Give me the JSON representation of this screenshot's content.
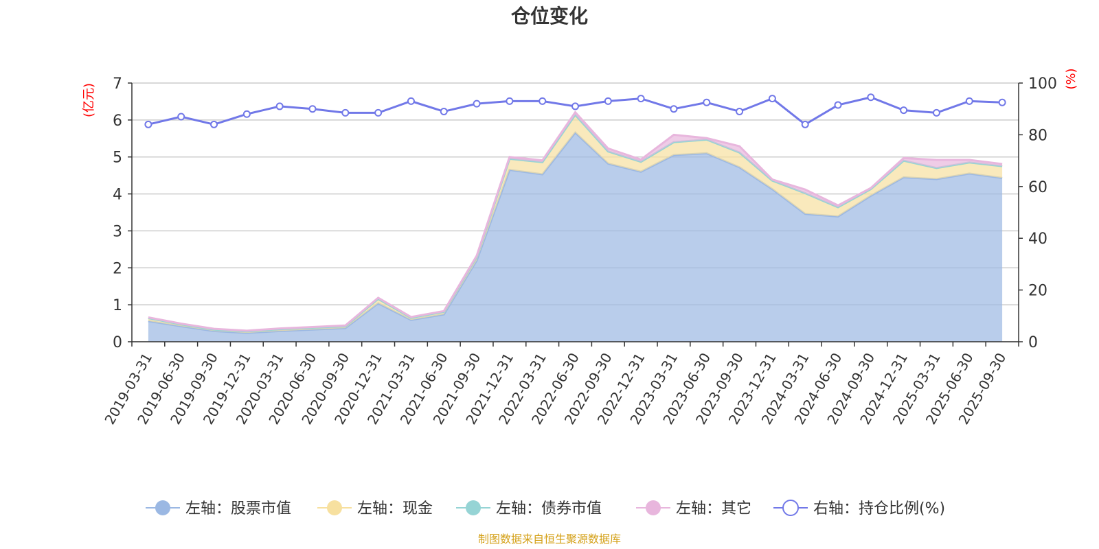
{
  "chart_data": {
    "type": "area",
    "title": "仓位变化",
    "y_left_label": "(亿元)",
    "y_right_label": "(%)",
    "y_left_range": [
      0,
      7
    ],
    "y_right_range": [
      0,
      100
    ],
    "y_left_ticks": [
      0,
      1,
      2,
      3,
      4,
      5,
      6,
      7
    ],
    "y_right_ticks": [
      0,
      20,
      40,
      60,
      80,
      100
    ],
    "categories": [
      "2019-03-31",
      "2019-06-30",
      "2019-09-30",
      "2019-12-31",
      "2020-03-31",
      "2020-06-30",
      "2020-09-30",
      "2020-12-31",
      "2021-03-31",
      "2021-06-30",
      "2021-09-30",
      "2021-12-31",
      "2022-03-31",
      "2022-06-30",
      "2022-09-30",
      "2022-12-31",
      "2023-03-31",
      "2023-06-30",
      "2023-09-30",
      "2023-12-31",
      "2024-03-31",
      "2024-06-30",
      "2024-09-30",
      "2024-12-31",
      "2025-03-31",
      "2025-06-30",
      "2025-09-30"
    ],
    "series": [
      {
        "name": "左轴：股票市值",
        "axis": "left",
        "color": "#9bb8e3",
        "values": [
          0.56,
          0.42,
          0.29,
          0.24,
          0.29,
          0.33,
          0.37,
          1.04,
          0.59,
          0.74,
          2.2,
          4.65,
          4.53,
          5.66,
          4.82,
          4.6,
          5.05,
          5.1,
          4.72,
          4.13,
          3.46,
          3.39,
          3.95,
          4.45,
          4.4,
          4.55,
          4.43
        ]
      },
      {
        "name": "左轴：现金",
        "axis": "left",
        "color": "#f7e09f",
        "values": [
          0.08,
          0.05,
          0.04,
          0.04,
          0.05,
          0.05,
          0.05,
          0.12,
          0.06,
          0.07,
          0.1,
          0.3,
          0.33,
          0.48,
          0.33,
          0.27,
          0.35,
          0.37,
          0.4,
          0.23,
          0.56,
          0.25,
          0.18,
          0.45,
          0.3,
          0.3,
          0.32
        ]
      },
      {
        "name": "左轴：债券市值",
        "axis": "left",
        "color": "#96d4d5",
        "values": [
          0,
          0,
          0,
          0,
          0,
          0,
          0,
          0,
          0,
          0,
          0,
          0,
          0,
          0,
          0,
          0,
          0,
          0,
          0,
          0,
          0,
          0,
          0,
          0,
          0,
          0,
          0
        ]
      },
      {
        "name": "左轴：其它",
        "axis": "left",
        "color": "#e8b6dd",
        "values": [
          0.02,
          0.02,
          0.02,
          0.02,
          0.02,
          0.02,
          0.02,
          0.03,
          0.02,
          0.02,
          0.03,
          0.05,
          0.05,
          0.07,
          0.08,
          0.06,
          0.2,
          0.04,
          0.17,
          0.03,
          0.1,
          0.05,
          0.03,
          0.07,
          0.22,
          0.07,
          0.06
        ]
      },
      {
        "name": "右轴：持仓比例(%)",
        "axis": "right",
        "color": "#7178e8",
        "values": [
          84,
          87,
          84,
          88,
          91,
          90,
          88.5,
          88.5,
          93,
          89,
          92,
          93,
          93,
          91,
          93,
          94,
          90,
          92.5,
          89,
          94,
          84,
          91.5,
          94.5,
          89.5,
          88.5,
          93,
          92.5
        ]
      }
    ],
    "legend_position": "bottom",
    "source": "制图数据来自恒生聚源数据库"
  }
}
